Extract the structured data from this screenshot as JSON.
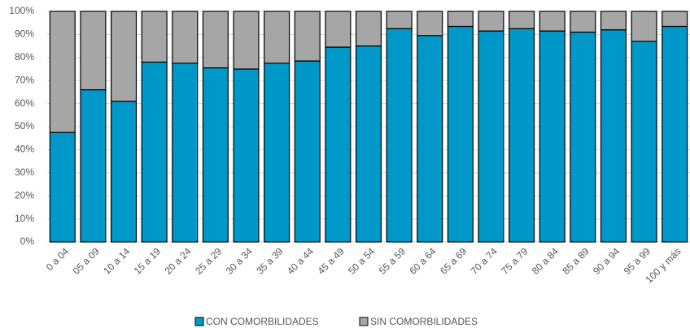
{
  "chart_data": {
    "type": "stacked_bar",
    "categories": [
      "0 a 04",
      "05 a 09",
      "10 a 14",
      "15 a 19",
      "20 a 24",
      "25 a 29",
      "30 a 34",
      "35 a 39",
      "40 a 44",
      "45 a 49",
      "50 a 54",
      "55 a 59",
      "60 a 64",
      "65 a 69",
      "70 a 74",
      "75 a 79",
      "80 a 84",
      "85 a 89",
      "90 a 94",
      "95 a 99",
      "100 y más"
    ],
    "series": [
      {
        "name": "CON COMORBILIDADES",
        "color": "#0098c9",
        "values": [
          47.5,
          66,
          61,
          78,
          77.5,
          75.5,
          75,
          77.5,
          78.5,
          84.5,
          85,
          92.5,
          89.5,
          93.5,
          91.5,
          92.5,
          91.5,
          91,
          92,
          87,
          93.5
        ]
      },
      {
        "name": "SIN COMORBILIDADES",
        "color": "#a6a6a6",
        "values": [
          52.5,
          34,
          39,
          22,
          22.5,
          24.5,
          25,
          22.5,
          21.5,
          15.5,
          15,
          7.5,
          10.5,
          6.5,
          8.5,
          7.5,
          8.5,
          9,
          8,
          13,
          6.5
        ]
      }
    ],
    "ylim": [
      0,
      100
    ],
    "yticks": [
      {
        "value": 0,
        "label": "0%"
      },
      {
        "value": 10,
        "label": "10%"
      },
      {
        "value": 20,
        "label": "20%"
      },
      {
        "value": 30,
        "label": "30%"
      },
      {
        "value": 40,
        "label": "40%"
      },
      {
        "value": 50,
        "label": "50%"
      },
      {
        "value": 60,
        "label": "60%"
      },
      {
        "value": 70,
        "label": "70%"
      },
      {
        "value": 80,
        "label": "80%"
      },
      {
        "value": 90,
        "label": "90%"
      },
      {
        "value": 100,
        "label": "100%"
      }
    ],
    "grid": true,
    "legend": "bottom"
  }
}
